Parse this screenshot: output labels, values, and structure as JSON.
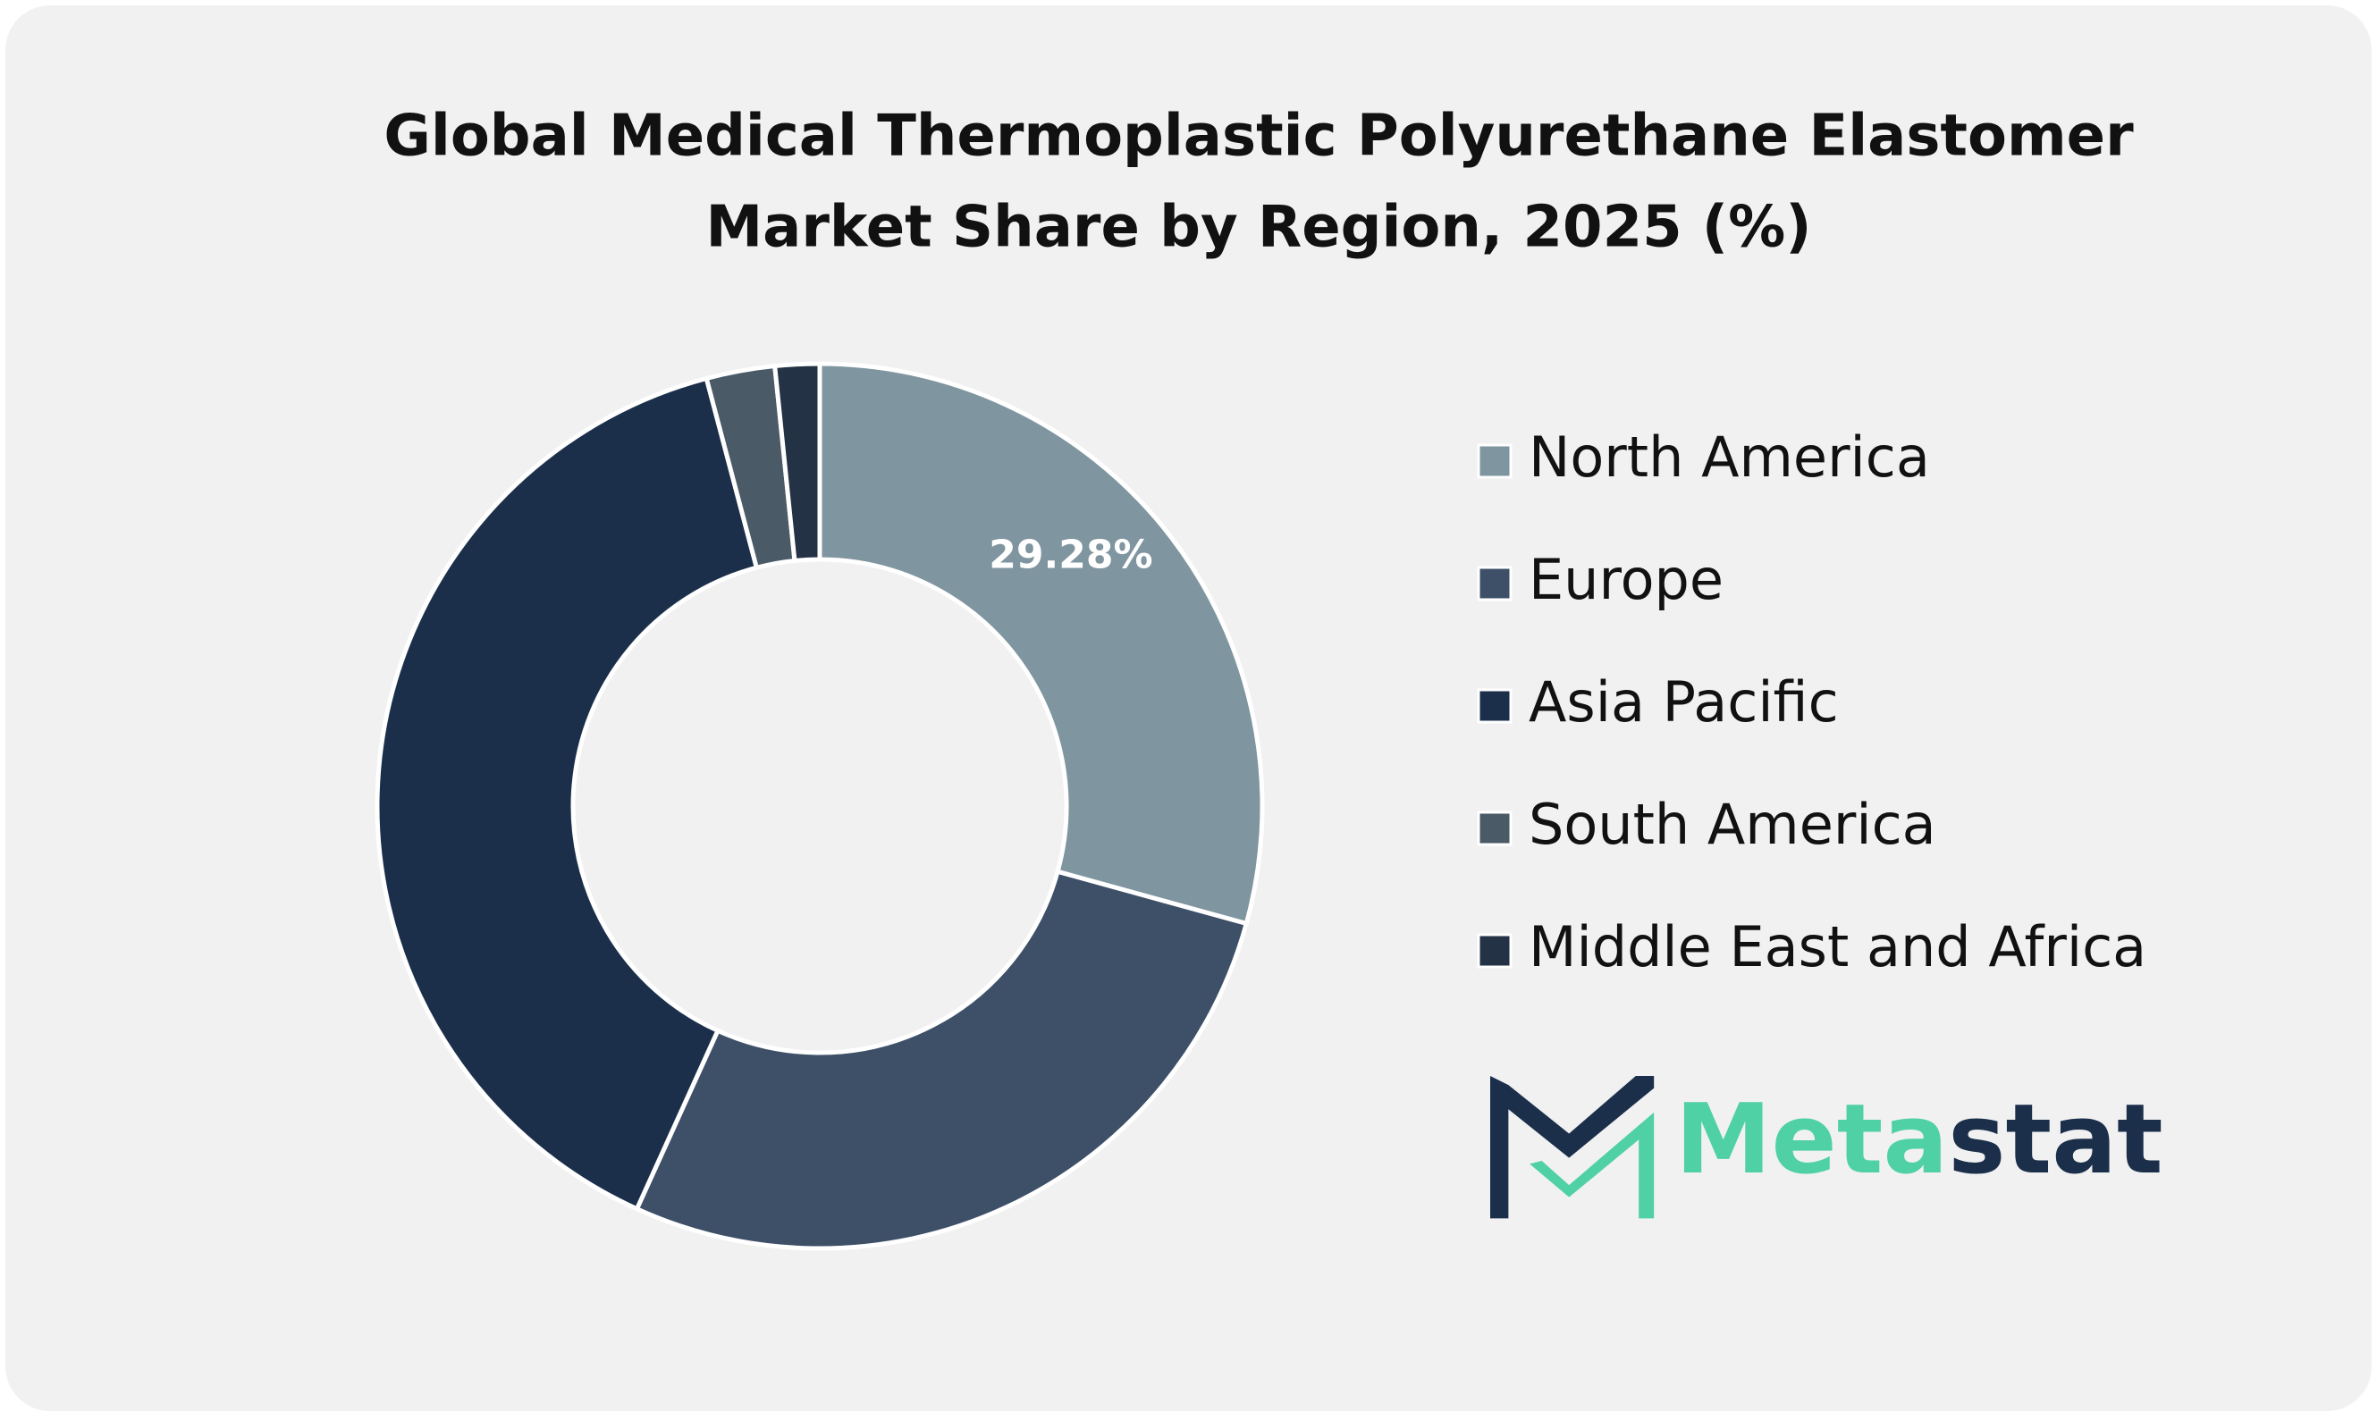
{
  "chart_data": {
    "type": "donut",
    "title": [
      "Global Medical Thermoplastic Polyurethane Elastomer",
      "Market Share by Region, 2025 (%)"
    ],
    "categories": [
      "North America",
      "Europe",
      "Asia Pacific",
      "South America",
      "Middle East and Africa"
    ],
    "values": [
      29.28,
      27.5,
      39.1,
      2.5,
      1.62
    ],
    "value_labels": [
      "29.28%",
      null,
      null,
      null,
      null
    ],
    "colors": [
      "#7f95a0",
      "#3d5068",
      "#1b2f4b",
      "#4a5a66",
      "#233244"
    ],
    "legend": "right"
  },
  "logo": [
    "Meta",
    "stat"
  ]
}
